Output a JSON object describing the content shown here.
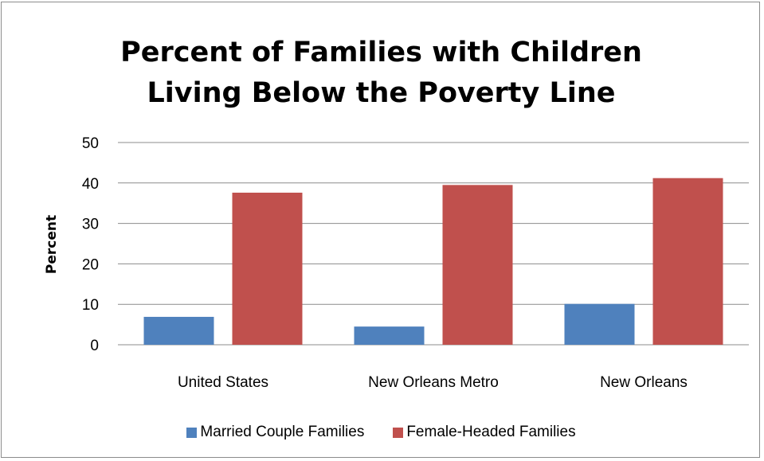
{
  "chart_data": {
    "type": "bar",
    "title_lines": [
      "Percent of Families with Children",
      "Living Below the Poverty Line"
    ],
    "xlabel": "",
    "ylabel": "Percent",
    "categories": [
      "United States",
      "New Orleans Metro",
      "New Orleans"
    ],
    "series": [
      {
        "name": "Married Couple Families",
        "color": "#4f81bd",
        "values": [
          6.9,
          4.5,
          10.1
        ]
      },
      {
        "name": "Female-Headed Families",
        "color": "#c0504d",
        "values": [
          37.6,
          39.5,
          41.2
        ]
      }
    ],
    "ylim": [
      0,
      50
    ],
    "yticks": [
      0,
      10,
      20,
      30,
      40,
      50
    ],
    "grid": true,
    "legend_position": "bottom"
  }
}
